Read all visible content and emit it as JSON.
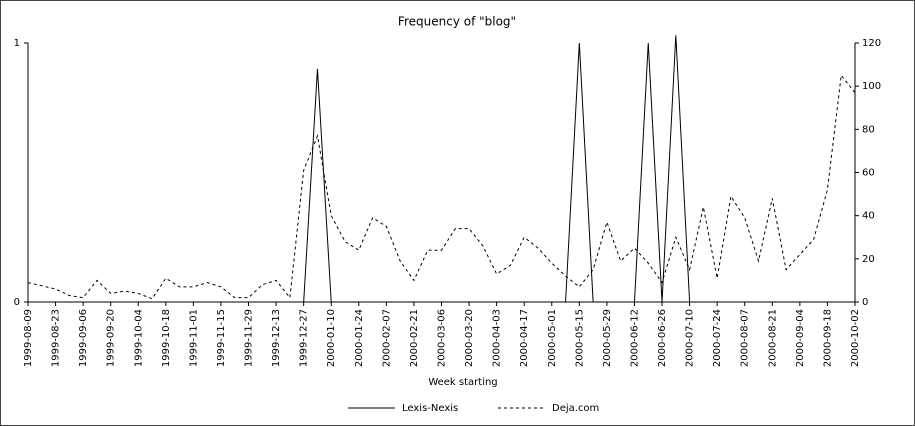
{
  "chart_data": {
    "type": "line",
    "title": "Frequency of \"blog\"",
    "x_label": "Week starting",
    "categories": [
      "1999-08-09",
      null,
      "1999-08-23",
      null,
      "1999-09-06",
      null,
      "1999-09-20",
      null,
      "1999-10-04",
      null,
      "1999-10-18",
      null,
      "1999-11-01",
      null,
      "1999-11-15",
      null,
      "1999-11-29",
      null,
      "1999-12-13",
      null,
      "1999-12-27",
      null,
      "2000-01-10",
      null,
      "2000-01-24",
      null,
      "2000-02-07",
      null,
      "2000-02-21",
      null,
      "2000-03-06",
      null,
      "2000-03-20",
      null,
      "2000-04-03",
      null,
      "2000-04-17",
      null,
      "2000-05-01",
      null,
      "2000-05-15",
      null,
      "2000-05-29",
      null,
      "2000-06-12",
      null,
      "2000-06-26",
      null,
      "2000-07-10",
      null,
      "2000-07-24",
      null,
      "2000-08-07",
      null,
      "2000-08-21",
      null,
      "2000-09-04",
      null,
      "2000-09-18",
      null,
      "2000-10-02"
    ],
    "series": [
      {
        "name": "Lexis-Nexis",
        "color": "#000000",
        "dash": "none",
        "axis": "y",
        "values": [
          0,
          0,
          0,
          0,
          0,
          0,
          0,
          0,
          0,
          0,
          0,
          0,
          0,
          0,
          0,
          0,
          0,
          0,
          0,
          0,
          0,
          0.9,
          0,
          0,
          0,
          0,
          0,
          0,
          0,
          0,
          0,
          0,
          0,
          0,
          0,
          0,
          0,
          0,
          0,
          0,
          1,
          0,
          0,
          0,
          0,
          1,
          0,
          1.03,
          0,
          0,
          0,
          0,
          0,
          0,
          0,
          0,
          0,
          0,
          0,
          0,
          0
        ]
      },
      {
        "name": "Deja.com",
        "color": "#000000",
        "dash": "3,3",
        "axis": "y2",
        "values": [
          9,
          7.5,
          6,
          3,
          2,
          10,
          4,
          5,
          4,
          1.5,
          11,
          7,
          7,
          9,
          7,
          2,
          2,
          8,
          10,
          2,
          61,
          77,
          40,
          28,
          24,
          39,
          35,
          19,
          10,
          24,
          24,
          34,
          34,
          26,
          13,
          17,
          30,
          25,
          18,
          12,
          7,
          15,
          37,
          19,
          25,
          18,
          9,
          30,
          15,
          44,
          11,
          49,
          39,
          19,
          48,
          15,
          22,
          29,
          52,
          105,
          97
        ]
      }
    ],
    "ylim": [
      0,
      1
    ],
    "yticks": [
      0,
      1
    ],
    "y2lim": [
      0,
      120
    ],
    "y2ticks": [
      0,
      20,
      40,
      60,
      80,
      100,
      120
    ],
    "grid": false,
    "legend": "bottom"
  }
}
